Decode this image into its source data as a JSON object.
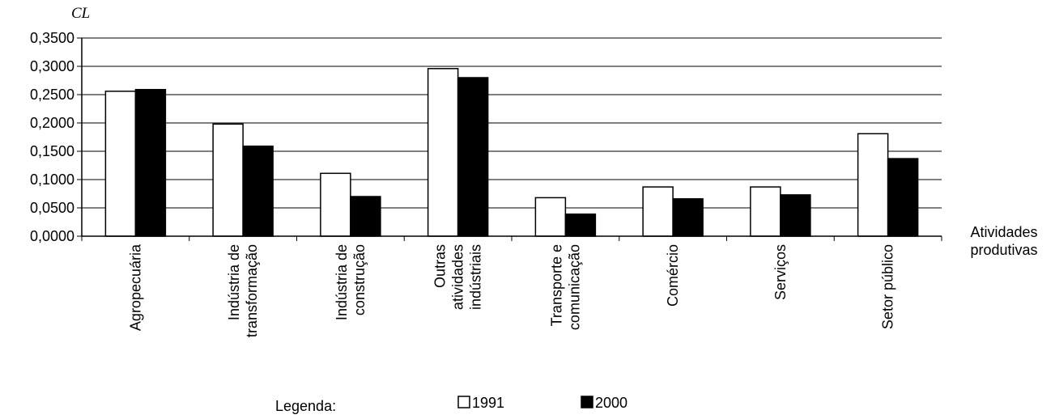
{
  "chart_data": {
    "type": "bar",
    "ylabel": "CL",
    "xlabel_lines": [
      "Atividades",
      "produtivas"
    ],
    "ylim": [
      0,
      0.35
    ],
    "yticks": [
      0,
      0.05,
      0.1,
      0.15,
      0.2,
      0.25,
      0.3,
      0.35
    ],
    "ytick_labels": [
      "0,0000",
      "0,0500",
      "0,1000",
      "0,1500",
      "0,2000",
      "0,2500",
      "0,3000",
      "0,3500"
    ],
    "grid": true,
    "categories": [
      [
        "Agropecuária"
      ],
      [
        "Indústria de",
        "transformação"
      ],
      [
        "Indústria de",
        "construção"
      ],
      [
        "Outras",
        "atividades",
        "indústriais"
      ],
      [
        "Transporte e",
        "comunicação"
      ],
      [
        "Comércio"
      ],
      [
        "Serviços"
      ],
      [
        "Setor público"
      ]
    ],
    "series": [
      {
        "name": "1991",
        "color": "#ffffff",
        "values": [
          0.256,
          0.198,
          0.111,
          0.296,
          0.068,
          0.087,
          0.087,
          0.181
        ]
      },
      {
        "name": "2000",
        "color": "#000000",
        "values": [
          0.259,
          0.159,
          0.07,
          0.28,
          0.039,
          0.066,
          0.073,
          0.137
        ]
      }
    ],
    "legend": {
      "title": "Legenda:",
      "placement": "bottom"
    }
  }
}
